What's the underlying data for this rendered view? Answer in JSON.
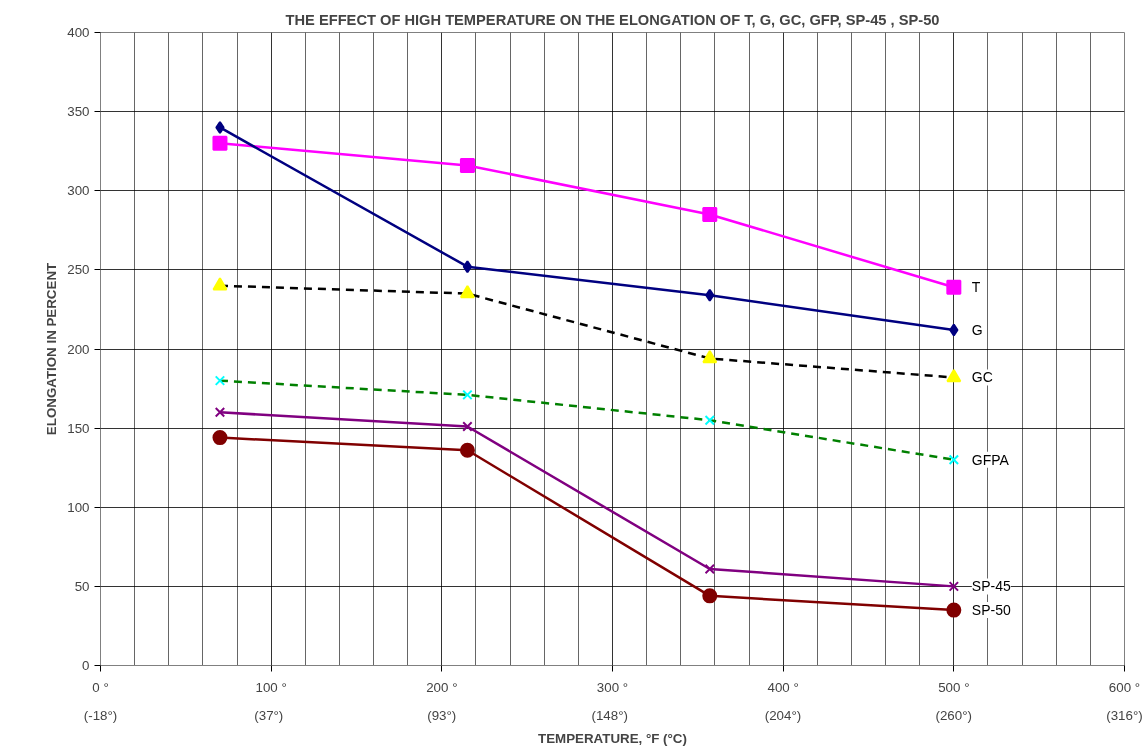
{
  "chart_data": {
    "type": "line",
    "title": "THE EFFECT OF HIGH TEMPERATURE ON THE ELONGATION OF T, G, GC, GFP, SP-45 , SP-50",
    "xlabel": "TEMPERATURE, °F (°C)",
    "ylabel": "ELONGATION IN PERCENT",
    "x": [
      70,
      215,
      357,
      500
    ],
    "xlim": [
      0,
      600
    ],
    "xticks": [
      {
        "value": 0,
        "label": "0 °"
      },
      {
        "value": 100,
        "label": "100 °"
      },
      {
        "value": 200,
        "label": "200 °"
      },
      {
        "value": 300,
        "label": "300 °"
      },
      {
        "value": 400,
        "label": "400 °"
      },
      {
        "value": 500,
        "label": "500 °"
      },
      {
        "value": 600,
        "label": "600 °"
      }
    ],
    "x2lim": [
      -17.8,
      315.6
    ],
    "x2ticks": [
      {
        "value": -17.8,
        "label": "(-18°)"
      },
      {
        "value": 37,
        "label": "(37°)"
      },
      {
        "value": 93.3,
        "label": "(93°)"
      },
      {
        "value": 148,
        "label": "(148°)"
      },
      {
        "value": 204.4,
        "label": "(204°)"
      },
      {
        "value": 260,
        "label": "(260°)"
      },
      {
        "value": 315.6,
        "label": "(316°)"
      }
    ],
    "ylim": [
      0,
      400
    ],
    "yticks": [
      0,
      50,
      100,
      150,
      200,
      250,
      300,
      350,
      400
    ],
    "grid": true,
    "series": [
      {
        "name": "T",
        "color": "#ff00ff",
        "colors": [
          "#ff00ff",
          "#ff00ff",
          "#ff00ff",
          "#ff00ff"
        ],
        "marker": "square",
        "line_style": "solid",
        "values": [
          330,
          316,
          285,
          239
        ]
      },
      {
        "name": "G",
        "color": "#000080",
        "colors": [
          "#000080",
          "#000080",
          "#000080",
          "#000080"
        ],
        "marker": "diamond",
        "line_style": "solid",
        "values": [
          340,
          252,
          234,
          212
        ]
      },
      {
        "name": "GC",
        "color": "#000000",
        "colors": [
          "#ffff00",
          "#ffff00",
          "#ffff00",
          "#ffff00"
        ],
        "marker": "triangle",
        "line_style": "dashed",
        "values": [
          240,
          235,
          194,
          182
        ]
      },
      {
        "name": "GFPA",
        "color": "#008000",
        "colors": [
          "#00ffff",
          "#00ffff",
          "#00ffff",
          "#00ffff"
        ],
        "marker": "cross",
        "line_style": "dashed",
        "values": [
          180,
          171,
          155,
          130
        ]
      },
      {
        "name": "SP-45",
        "color": "#800080",
        "colors": [
          "#800080",
          "#800080",
          "#800080",
          "#800080"
        ],
        "marker": "cross",
        "line_style": "solid",
        "values": [
          160,
          151,
          61,
          50
        ]
      },
      {
        "name": "SP-50",
        "color": "#800000",
        "colors": [
          "#800000",
          "#800000",
          "#800000",
          "#800000"
        ],
        "marker": "circle",
        "line_style": "solid",
        "values": [
          144,
          136,
          44,
          35
        ]
      }
    ]
  }
}
